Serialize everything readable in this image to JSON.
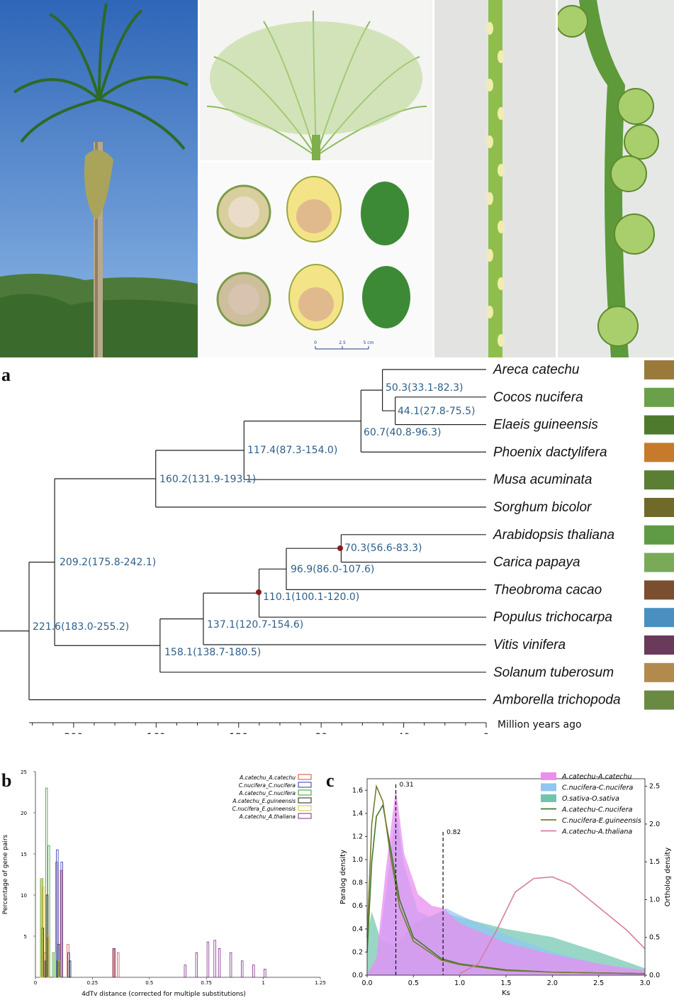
{
  "photo_panel": {
    "scale_bar": {
      "ticks": [
        "0",
        "2.5",
        "5 cm"
      ]
    }
  },
  "panel_a": {
    "letter": "a",
    "taxa": [
      {
        "name": "Areca catechu",
        "highlight": true,
        "color": "#d9331e"
      },
      {
        "name": "Cocos nucifera"
      },
      {
        "name": "Elaeis guineensis"
      },
      {
        "name": "Phoenix dactylifera"
      },
      {
        "name": "Musa acuminata"
      },
      {
        "name": "Sorghum bicolor"
      },
      {
        "name": "Arabidopsis thaliana"
      },
      {
        "name": "Carica papaya"
      },
      {
        "name": "Theobroma cacao"
      },
      {
        "name": "Populus trichocarpa"
      },
      {
        "name": "Vitis vinifera"
      },
      {
        "name": "Solanum tuberosum"
      },
      {
        "name": "Amborella trichopoda"
      }
    ],
    "node_labels": [
      "50.3(33.1-82.3)",
      "44.1(27.8-75.5)",
      "60.7(40.8-96.3)",
      "117.4(87.3-154.0)",
      "160.2(131.9-193.1)",
      "70.3(56.6-83.3)",
      "96.9(86.0-107.6)",
      "110.1(100.1-120.0)",
      "137.1(120.7-154.6)",
      "158.1(138.7-180.5)",
      "209.2(175.8-242.1)",
      "221.6(183.0-255.2)"
    ],
    "axis": {
      "ticks": [
        "200",
        "160",
        "120",
        "80",
        "40",
        "0"
      ],
      "label": "Million years ago"
    }
  },
  "panel_b": {
    "letter": "b",
    "ylabel": "Percentage of gene pairs",
    "xlabel": "4dTv distance (corrected for multiple substitutions)",
    "yticks": [
      "5",
      "10",
      "15",
      "20",
      "25"
    ],
    "xticks": [
      "0",
      "0.25",
      "0.5",
      "0.75",
      "1",
      "1.25"
    ],
    "legend": [
      {
        "name": "A.catechu_A.catechu",
        "color": "#d44a3c"
      },
      {
        "name": "C.nucifera_C.nucifera",
        "color": "#2b35b5"
      },
      {
        "name": "A.catechu_C.nucifera",
        "color": "#2e9a2e"
      },
      {
        "name": "A.catechu_E.guineensis",
        "color": "#222222"
      },
      {
        "name": "C.nucifera_E.guineensis",
        "color": "#e6c23a"
      },
      {
        "name": "A.catechu_A.thaliana",
        "color": "#7b2e8a"
      }
    ]
  },
  "panel_c": {
    "letter": "c",
    "ylabel_left": "Paralog density",
    "ylabel_right": "Ortholog density",
    "xlabel": "Ks",
    "yticks_left": [
      "0.0",
      "0.2",
      "0.4",
      "0.6",
      "0.8",
      "1.0",
      "1.2",
      "1.4",
      "1.6"
    ],
    "yticks_right": [
      "0.0",
      "0.5",
      "1.0",
      "1.5",
      "2.0",
      "2.5"
    ],
    "xticks": [
      "0.0",
      "0.5",
      "1.0",
      "1.5",
      "2.0",
      "2.5",
      "3.0"
    ],
    "peak_labels": [
      "0.31",
      "0.82"
    ],
    "legend": [
      {
        "name": "A.catechu-A.catechu",
        "color": "#e88ff0"
      },
      {
        "name": "C.nucifera-C.nucifera",
        "color": "#8fc6f2"
      },
      {
        "name": "O.sativa-O.sativa",
        "color": "#6fc4ac"
      },
      {
        "name": "A.catechu-C.nucifera",
        "color": "#3f7a2a"
      },
      {
        "name": "C.nucifera-E.guineensis",
        "color": "#7a7a30"
      },
      {
        "name": "A.catechu-A.thaliana",
        "color": "#d57f9e"
      }
    ]
  },
  "chart_data": [
    {
      "type": "bar",
      "panel": "b",
      "ylabel": "Percentage of gene pairs",
      "xlabel": "4dTv distance (corrected for multiple substitutions)",
      "xlim": [
        0,
        1.25
      ],
      "ylim": [
        0,
        25
      ],
      "series": [
        {
          "name": "A.catechu_A.catechu",
          "x": [
            0.05,
            0.1,
            0.12,
            0.15,
            0.35,
            0.37
          ],
          "y": [
            3,
            14,
            13,
            4,
            3.5,
            3
          ]
        },
        {
          "name": "C.nucifera_C.nucifera",
          "x": [
            0.05,
            0.1,
            0.12,
            0.15,
            0.35
          ],
          "y": [
            2,
            15.5,
            14,
            3,
            3.5
          ]
        },
        {
          "name": "A.catechu_C.nucifera",
          "x": [
            0.03,
            0.05,
            0.06,
            0.08,
            0.1
          ],
          "y": [
            12,
            23,
            16,
            3,
            2
          ]
        },
        {
          "name": "A.catechu_E.guineensis",
          "x": [
            0.03,
            0.05,
            0.1,
            0.15
          ],
          "y": [
            6,
            10,
            4,
            2
          ]
        },
        {
          "name": "C.nucifera_E.guineensis",
          "x": [
            0.02,
            0.03,
            0.05,
            0.08,
            0.1
          ],
          "y": [
            12,
            11,
            5,
            3,
            2
          ]
        },
        {
          "name": "A.catechu_A.thaliana",
          "x": [
            0.65,
            0.7,
            0.75,
            0.78,
            0.8,
            0.85,
            0.9,
            0.95,
            1.0
          ],
          "y": [
            1.5,
            3,
            4.3,
            4.5,
            3.5,
            3,
            2,
            1.5,
            1
          ]
        }
      ]
    },
    {
      "type": "area",
      "panel": "c",
      "xlabel": "Ks",
      "ylabel": "Paralog density",
      "y2label": "Ortholog density",
      "xlim": [
        0,
        3.0
      ],
      "ylim": [
        0,
        1.6
      ],
      "y2lim": [
        0,
        2.5
      ],
      "series": [
        {
          "name": "A.catechu-A.catechu",
          "axis": "left",
          "x": [
            0,
            0.1,
            0.2,
            0.31,
            0.4,
            0.55,
            0.7,
            0.82,
            1.0,
            1.5,
            2.0,
            2.5,
            3.0
          ],
          "y": [
            0.01,
            0.15,
            0.9,
            1.62,
            1.05,
            0.7,
            0.6,
            0.58,
            0.45,
            0.28,
            0.18,
            0.1,
            0.04
          ]
        },
        {
          "name": "C.nucifera-C.nucifera",
          "axis": "left",
          "x": [
            0,
            0.1,
            0.2,
            0.31,
            0.4,
            0.55,
            0.7,
            0.85,
            1.0,
            1.5,
            2.0,
            2.5,
            3.0
          ],
          "y": [
            0.0,
            0.1,
            0.7,
            1.43,
            0.95,
            0.55,
            0.5,
            0.58,
            0.52,
            0.35,
            0.2,
            0.1,
            0.03
          ]
        },
        {
          "name": "O.sativa-O.sativa",
          "axis": "left",
          "x": [
            0,
            0.05,
            0.15,
            0.3,
            0.5,
            0.8,
            1.0,
            1.5,
            2.0,
            2.5,
            3.0
          ],
          "y": [
            0.35,
            0.55,
            0.3,
            0.25,
            0.45,
            0.55,
            0.5,
            0.4,
            0.33,
            0.2,
            0.06
          ]
        },
        {
          "name": "A.catechu-C.nucifera",
          "axis": "right",
          "x": [
            0,
            0.05,
            0.1,
            0.17,
            0.25,
            0.35,
            0.5,
            0.8,
            1.0,
            1.5,
            2.0,
            3.0
          ],
          "y": [
            0.3,
            1.5,
            2.1,
            2.25,
            1.7,
            1.0,
            0.5,
            0.22,
            0.15,
            0.07,
            0.04,
            0.02
          ]
        },
        {
          "name": "C.nucifera-E.guineensis",
          "axis": "right",
          "x": [
            0,
            0.05,
            0.1,
            0.17,
            0.25,
            0.35,
            0.5,
            0.8,
            1.0,
            1.5,
            2.0,
            3.0
          ],
          "y": [
            0.5,
            2.0,
            2.5,
            2.3,
            1.6,
            0.9,
            0.45,
            0.2,
            0.14,
            0.06,
            0.04,
            0.02
          ]
        },
        {
          "name": "A.catechu-A.thaliana",
          "axis": "right",
          "x": [
            1.0,
            1.2,
            1.4,
            1.6,
            1.8,
            2.0,
            2.2,
            2.5,
            2.8,
            3.0
          ],
          "y": [
            0.02,
            0.15,
            0.6,
            1.1,
            1.28,
            1.3,
            1.2,
            0.9,
            0.6,
            0.35
          ]
        }
      ],
      "annotations": [
        0.31,
        0.82
      ]
    }
  ]
}
